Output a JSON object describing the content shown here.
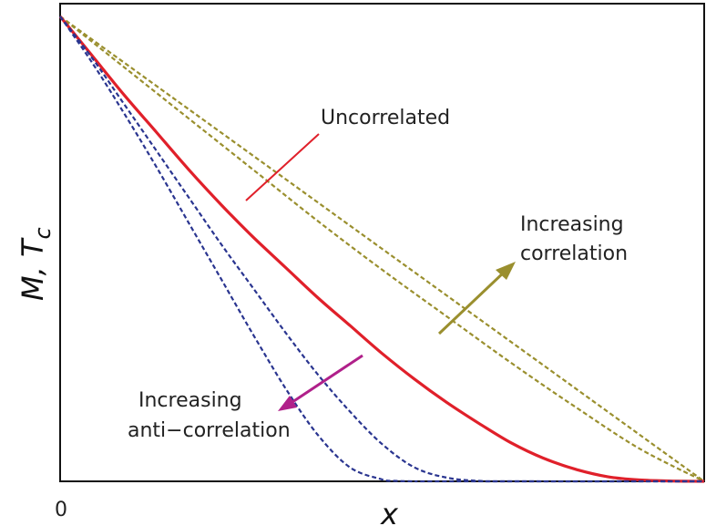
{
  "chart_data": {
    "type": "line",
    "title": "",
    "xlabel": "x",
    "ylabel_main": "M, T",
    "ylabel_sub": "c",
    "x_tick_labels": [
      "0"
    ],
    "xlim": [
      0,
      1
    ],
    "ylim": [
      0,
      1
    ],
    "grid": false,
    "series": [
      {
        "kind": "correlated",
        "color": "#9a8f2e",
        "dash": true,
        "x": [
          0,
          0.25,
          0.5,
          0.75,
          1.0
        ],
        "y": [
          1,
          0.75,
          0.5,
          0.25,
          0.0
        ]
      },
      {
        "kind": "correlated",
        "color": "#9a8f2e",
        "dash": true,
        "x": [
          0,
          0.1,
          0.2,
          0.3,
          0.4,
          0.5,
          0.6,
          0.7,
          0.8,
          0.9,
          1.0
        ],
        "y": [
          1,
          0.89,
          0.78,
          0.67,
          0.56,
          0.455,
          0.355,
          0.255,
          0.16,
          0.07,
          0.0
        ]
      },
      {
        "kind": "uncorrelated",
        "color": "#e0202a",
        "dash": false,
        "x": [
          0,
          0.05,
          0.1,
          0.15,
          0.2,
          0.25,
          0.3,
          0.35,
          0.4,
          0.45,
          0.5,
          0.55,
          0.6,
          0.65,
          0.7,
          0.75,
          0.8,
          0.85,
          0.9,
          0.95,
          1.0
        ],
        "y": [
          1,
          0.915,
          0.83,
          0.75,
          0.67,
          0.595,
          0.525,
          0.46,
          0.395,
          0.335,
          0.275,
          0.22,
          0.17,
          0.125,
          0.083,
          0.05,
          0.026,
          0.01,
          0.003,
          0.0006,
          0.0
        ]
      },
      {
        "kind": "anti-correlated",
        "color": "#2a3590",
        "dash": true,
        "x": [
          0,
          0.05,
          0.1,
          0.15,
          0.2,
          0.25,
          0.3,
          0.35,
          0.4,
          0.45,
          0.5,
          0.55,
          0.6,
          0.65,
          0.7,
          1.0
        ],
        "y": [
          1,
          0.91,
          0.81,
          0.71,
          0.61,
          0.51,
          0.415,
          0.32,
          0.23,
          0.15,
          0.08,
          0.03,
          0.008,
          0.001,
          0.0,
          0.0
        ]
      },
      {
        "kind": "anti-correlated",
        "color": "#2a3590",
        "dash": true,
        "x": [
          0,
          0.05,
          0.1,
          0.15,
          0.2,
          0.25,
          0.3,
          0.35,
          0.4,
          0.45,
          0.5,
          0.52,
          0.55,
          0.6,
          1.0
        ],
        "y": [
          1,
          0.9,
          0.79,
          0.675,
          0.555,
          0.435,
          0.315,
          0.2,
          0.1,
          0.03,
          0.004,
          0.001,
          0.0,
          0.0,
          0.0
        ]
      }
    ],
    "annotations": [
      {
        "text": "Uncorrelated",
        "color": "#e0202a"
      },
      {
        "text": "Increasing",
        "text2": "correlation",
        "color": "#9a8f2e"
      },
      {
        "text": "Increasing",
        "text2": "anti−correlation",
        "color": "#b0208a"
      }
    ]
  }
}
